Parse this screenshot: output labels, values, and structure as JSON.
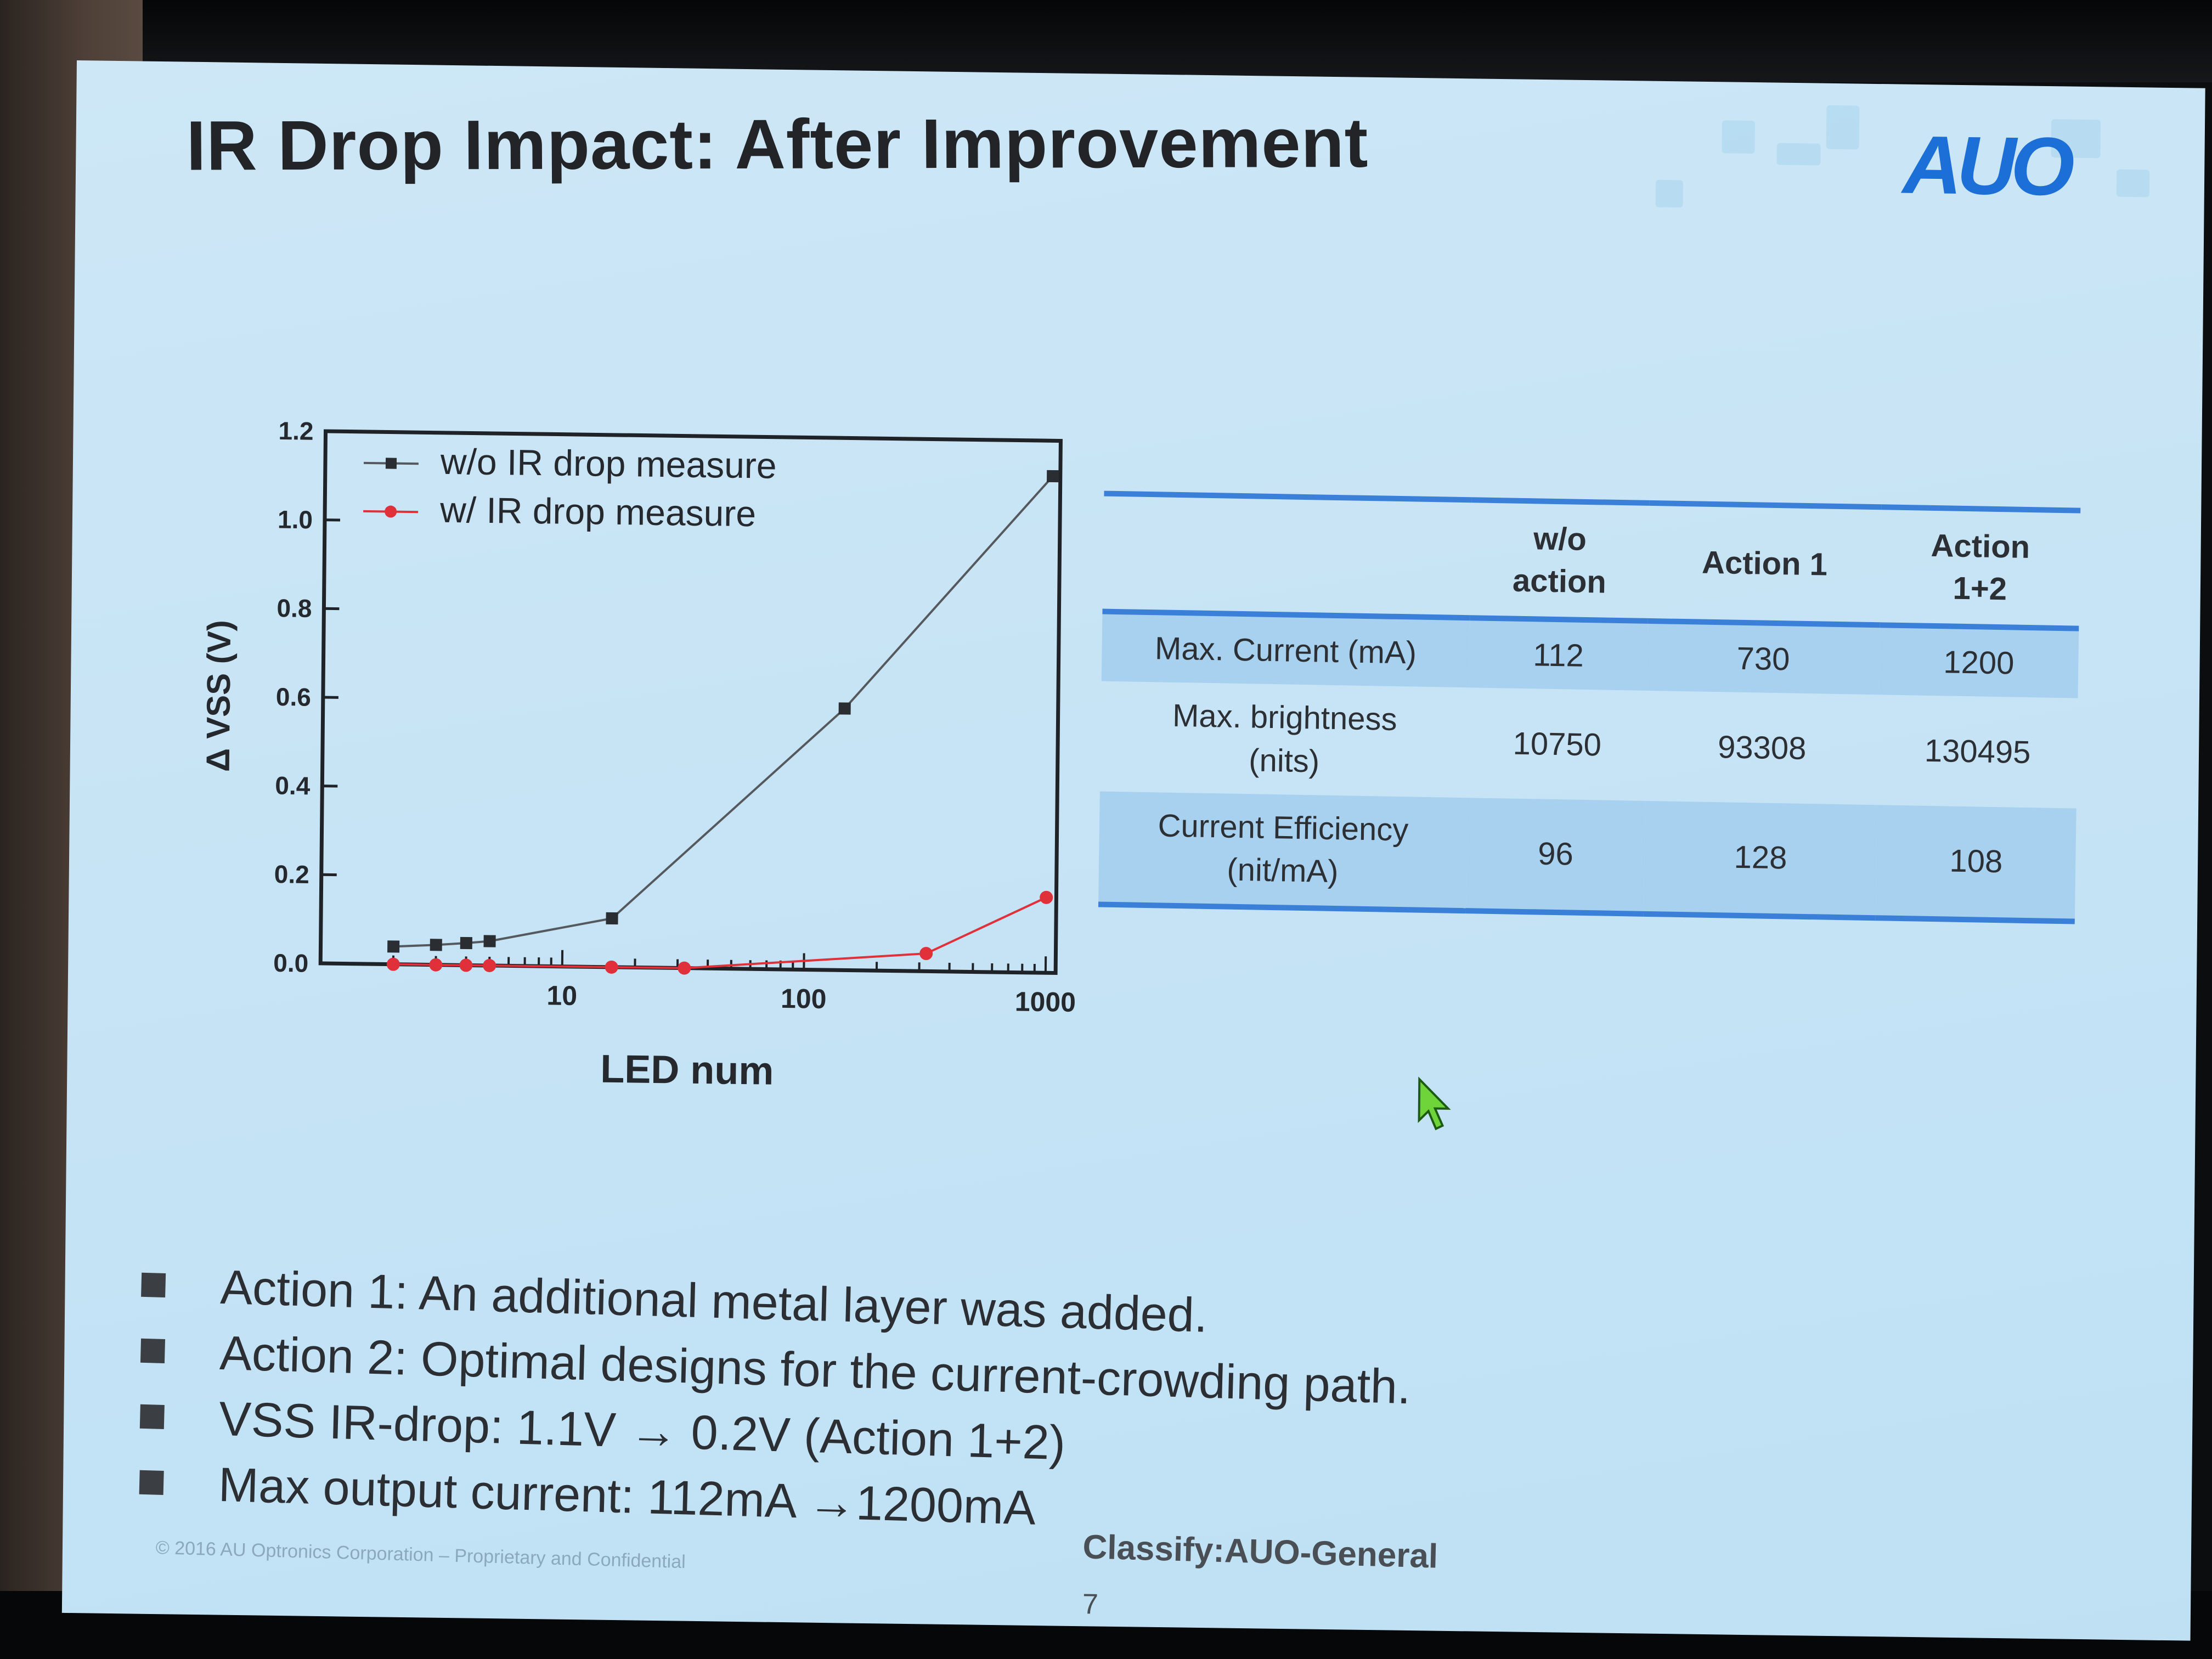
{
  "slide": {
    "title": "IR Drop Impact: After Improvement",
    "logo_text": "AUO",
    "logo_color": "#1b6fd6",
    "page_number": "7",
    "classification": "Classify:AUO-General",
    "copyright": "© 2016 AU Optronics Corporation – Proprietary and Confidential"
  },
  "chart_data": {
    "type": "line",
    "x_scale": "log",
    "xlabel": "LED num",
    "ylabel": "Δ VSS (V)",
    "xlim": [
      1,
      1100
    ],
    "ylim": [
      0.0,
      1.2
    ],
    "x_tick_labels": [
      "10",
      "100",
      "1000"
    ],
    "y_tick_labels": [
      "0.0",
      "0.2",
      "0.4",
      "0.6",
      "0.8",
      "1.0",
      "1.2"
    ],
    "legend_position": "top-left",
    "series": [
      {
        "name": "w/o IR drop measure",
        "color": "#55595e",
        "marker": "square",
        "x": [
          2,
          3,
          4,
          5,
          16,
          144,
          1024
        ],
        "y": [
          0.04,
          0.045,
          0.05,
          0.055,
          0.11,
          0.59,
          1.12
        ]
      },
      {
        "name": "w/ IR drop measure",
        "color": "#e0303a",
        "marker": "circle",
        "x": [
          2,
          3,
          4,
          5,
          16,
          32,
          320,
          1000
        ],
        "y": [
          0.0,
          0.0,
          0.0,
          0.0,
          0.0,
          0.0,
          0.04,
          0.17
        ]
      }
    ]
  },
  "table": {
    "columns": [
      "",
      "w/o\naction",
      "Action 1",
      "Action\n1+2"
    ],
    "rows": [
      {
        "label": "Max. Current (mA)",
        "values": [
          "112",
          "730",
          "1200"
        ]
      },
      {
        "label": "Max. brightness\n(nits)",
        "values": [
          "10750",
          "93308",
          "130495"
        ]
      },
      {
        "label": "Current Efficiency\n(nit/mA)",
        "values": [
          "96",
          "128",
          "108"
        ]
      }
    ],
    "shade_color": "#a7d1ef",
    "rule_color": "#3a7fd8"
  },
  "bullets": [
    "Action 1: An additional metal layer was added.",
    "Action 2: Optimal designs for the current-crowding path.",
    "VSS IR-drop: 1.1V → 0.2V (Action 1+2)",
    "Max output current: 112mA →1200mA"
  ]
}
